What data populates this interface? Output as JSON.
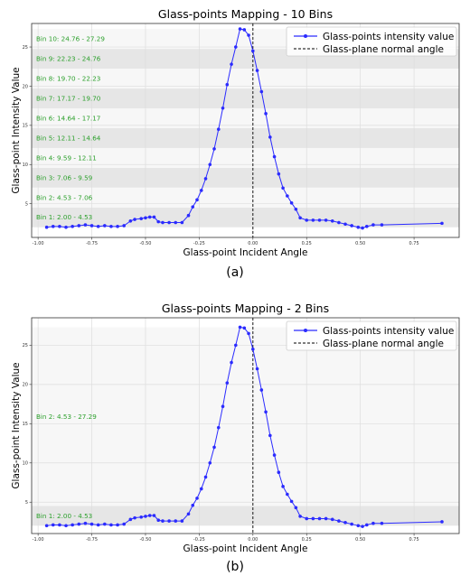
{
  "figure": {
    "caption_a": "(a)",
    "caption_b": "(b)"
  },
  "colors": {
    "series": "#2b2bff",
    "bin_label": "#2ca02c",
    "band_dark": "#e6e6e6",
    "band_light": "#f7f7f7",
    "grid": "#dddddd"
  },
  "chart_data": [
    {
      "type": "line",
      "title": "Glass-points Mapping - 10 Bins",
      "xlabel": "Glass-point Incident Angle",
      "ylabel": "Glass-point Intensity Value",
      "xlim": [
        -1.03,
        0.96
      ],
      "ylim": [
        0.7,
        28.0
      ],
      "xticks": [
        -1.0,
        -0.75,
        -0.5,
        -0.25,
        0.0,
        0.25,
        0.5,
        0.75
      ],
      "xtick_labels": [
        "-1.00",
        "-0.75",
        "-0.50",
        "-0.25",
        "0.00",
        "0.25",
        "0.50",
        "0.75"
      ],
      "yticks": [
        5,
        10,
        15,
        20,
        25
      ],
      "ytick_labels": [
        "5",
        "10",
        "15",
        "20",
        "25"
      ],
      "grid": true,
      "legend_position": "top-right",
      "vline_x": 0.0,
      "bins": [
        {
          "label": "Bin 1: 2.00 - 4.53",
          "low": 2.0,
          "high": 4.53
        },
        {
          "label": "Bin 2: 4.53 - 7.06",
          "low": 4.53,
          "high": 7.06
        },
        {
          "label": "Bin 3: 7.06 - 9.59",
          "low": 7.06,
          "high": 9.59
        },
        {
          "label": "Bin 4: 9.59 - 12.11",
          "low": 9.59,
          "high": 12.11
        },
        {
          "label": "Bin 5: 12.11 - 14.64",
          "low": 12.11,
          "high": 14.64
        },
        {
          "label": "Bin 6: 14.64 - 17.17",
          "low": 14.64,
          "high": 17.17
        },
        {
          "label": "Bin 7: 17.17 - 19.70",
          "low": 17.17,
          "high": 19.7
        },
        {
          "label": "Bin 8: 19.70 - 22.23",
          "low": 19.7,
          "high": 22.23
        },
        {
          "label": "Bin 9: 22.23 - 24.76",
          "low": 22.23,
          "high": 24.76
        },
        {
          "label": "Bin 10: 24.76 - 27.29",
          "low": 24.76,
          "high": 27.29
        }
      ],
      "series": [
        {
          "name": "Glass-points intensity value",
          "style": "line-markers"
        },
        {
          "name": "Glass-plane normal angle",
          "style": "dashed"
        }
      ],
      "x": [
        -0.96,
        -0.93,
        -0.9,
        -0.87,
        -0.84,
        -0.81,
        -0.78,
        -0.75,
        -0.72,
        -0.69,
        -0.66,
        -0.63,
        -0.6,
        -0.57,
        -0.55,
        -0.52,
        -0.5,
        -0.48,
        -0.46,
        -0.44,
        -0.42,
        -0.39,
        -0.36,
        -0.33,
        -0.3,
        -0.28,
        -0.26,
        -0.24,
        -0.22,
        -0.2,
        -0.18,
        -0.16,
        -0.14,
        -0.12,
        -0.1,
        -0.08,
        -0.06,
        -0.04,
        -0.02,
        0.0,
        0.02,
        0.04,
        0.06,
        0.08,
        0.1,
        0.12,
        0.14,
        0.16,
        0.18,
        0.2,
        0.22,
        0.25,
        0.28,
        0.31,
        0.34,
        0.37,
        0.4,
        0.43,
        0.46,
        0.49,
        0.51,
        0.53,
        0.56,
        0.6,
        0.88
      ],
      "y": [
        2.0,
        2.1,
        2.1,
        2.0,
        2.1,
        2.2,
        2.3,
        2.2,
        2.1,
        2.2,
        2.1,
        2.1,
        2.2,
        2.8,
        3.0,
        3.1,
        3.2,
        3.3,
        3.3,
        2.7,
        2.6,
        2.6,
        2.6,
        2.6,
        3.5,
        4.6,
        5.5,
        6.7,
        8.2,
        10.0,
        12.0,
        14.5,
        17.2,
        20.2,
        22.8,
        25.0,
        27.3,
        27.2,
        26.5,
        24.5,
        22.0,
        19.3,
        16.5,
        13.5,
        11.0,
        8.8,
        7.0,
        6.0,
        5.1,
        4.3,
        3.2,
        2.9,
        2.9,
        2.9,
        2.9,
        2.8,
        2.6,
        2.4,
        2.2,
        2.0,
        1.9,
        2.1,
        2.3,
        2.3,
        2.5
      ]
    },
    {
      "type": "line",
      "title": "Glass-points Mapping - 2 Bins",
      "xlabel": "Glass-point Incident Angle",
      "ylabel": "Glass-point Intensity Value",
      "xlim": [
        -1.03,
        0.96
      ],
      "ylim": [
        1.0,
        28.5
      ],
      "xticks": [
        -1.0,
        -0.75,
        -0.5,
        -0.25,
        0.0,
        0.25,
        0.5,
        0.75
      ],
      "xtick_labels": [
        "-1.00",
        "-0.75",
        "-0.50",
        "-0.25",
        "0.00",
        "0.25",
        "0.50",
        "0.75"
      ],
      "yticks": [
        5,
        10,
        15,
        20,
        25
      ],
      "ytick_labels": [
        "5",
        "10",
        "15",
        "20",
        "25"
      ],
      "grid": true,
      "legend_position": "top-right",
      "vline_x": 0.0,
      "bins": [
        {
          "label": "Bin 1: 2.00 - 4.53",
          "low": 2.0,
          "high": 4.53
        },
        {
          "label": "Bin 2: 4.53 - 27.29",
          "low": 4.53,
          "high": 27.29
        }
      ],
      "series": [
        {
          "name": "Glass-points intensity value",
          "style": "line-markers"
        },
        {
          "name": "Glass-plane normal angle",
          "style": "dashed"
        }
      ],
      "x": [
        -0.96,
        -0.93,
        -0.9,
        -0.87,
        -0.84,
        -0.81,
        -0.78,
        -0.75,
        -0.72,
        -0.69,
        -0.66,
        -0.63,
        -0.6,
        -0.57,
        -0.55,
        -0.52,
        -0.5,
        -0.48,
        -0.46,
        -0.44,
        -0.42,
        -0.39,
        -0.36,
        -0.33,
        -0.3,
        -0.28,
        -0.26,
        -0.24,
        -0.22,
        -0.2,
        -0.18,
        -0.16,
        -0.14,
        -0.12,
        -0.1,
        -0.08,
        -0.06,
        -0.04,
        -0.02,
        0.0,
        0.02,
        0.04,
        0.06,
        0.08,
        0.1,
        0.12,
        0.14,
        0.16,
        0.18,
        0.2,
        0.22,
        0.25,
        0.28,
        0.31,
        0.34,
        0.37,
        0.4,
        0.43,
        0.46,
        0.49,
        0.51,
        0.53,
        0.56,
        0.6,
        0.88
      ],
      "y": [
        2.0,
        2.1,
        2.1,
        2.0,
        2.1,
        2.2,
        2.3,
        2.2,
        2.1,
        2.2,
        2.1,
        2.1,
        2.2,
        2.8,
        3.0,
        3.1,
        3.2,
        3.3,
        3.3,
        2.7,
        2.6,
        2.6,
        2.6,
        2.6,
        3.5,
        4.6,
        5.5,
        6.7,
        8.2,
        10.0,
        12.0,
        14.5,
        17.2,
        20.2,
        22.8,
        25.0,
        27.3,
        27.2,
        26.5,
        24.5,
        22.0,
        19.3,
        16.5,
        13.5,
        11.0,
        8.8,
        7.0,
        6.0,
        5.1,
        4.3,
        3.2,
        2.9,
        2.9,
        2.9,
        2.9,
        2.8,
        2.6,
        2.4,
        2.2,
        2.0,
        1.9,
        2.1,
        2.3,
        2.3,
        2.5
      ]
    }
  ]
}
